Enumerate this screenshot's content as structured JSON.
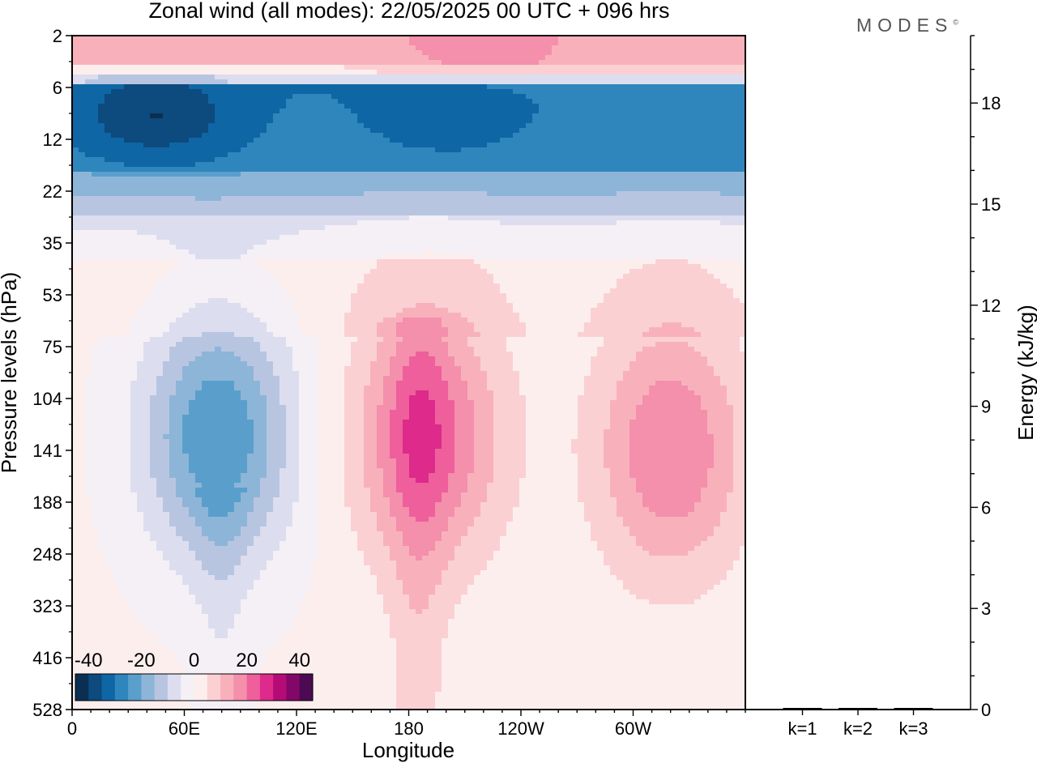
{
  "title": "Zonal wind (all modes):  22/05/2025  00 UTC  + 096 hrs",
  "brand": "MODES",
  "brand_mark": "©",
  "chart_data": [
    {
      "type": "heatmap",
      "title": "Zonal wind (all modes):  22/05/2025  00 UTC  + 096 hrs",
      "xlabel": "Longitude",
      "ylabel": "Pressure levels (hPa)",
      "x_ticks": [
        "0",
        "60E",
        "120E",
        "180",
        "120W",
        "60W"
      ],
      "x_tick_values": [
        0,
        60,
        120,
        180,
        240,
        300
      ],
      "xlim": [
        0,
        360
      ],
      "y_ticks": [
        "2",
        "6",
        "12",
        "22",
        "35",
        "53",
        "75",
        "104",
        "141",
        "188",
        "248",
        "323",
        "416",
        "528"
      ],
      "y_scale": "log (pressure, top 2 hPa to bottom 528 hPa)",
      "colorbar": {
        "labels": [
          "-40",
          "-20",
          "0",
          "20",
          "40"
        ],
        "label_values": [
          -40,
          -20,
          0,
          20,
          40
        ],
        "range": [
          -45,
          45
        ],
        "step": 5,
        "colors": [
          "#0b2f52",
          "#0d4a7e",
          "#0f66a4",
          "#2e86bd",
          "#5a9fcb",
          "#8db5d7",
          "#b8c5e1",
          "#dcdeef",
          "#f5f0f6",
          "#fdeeee",
          "#fbd0d3",
          "#f8b1bb",
          "#f48fac",
          "#ee5f9c",
          "#dd2a8b",
          "#b40b76",
          "#820768",
          "#4b0a52"
        ],
        "placement": "bottom-left inside plot"
      },
      "features": [
        {
          "level_hPa": 9,
          "lon": 45,
          "u": -40
        },
        {
          "level_hPa": 9,
          "lon": 200,
          "u": -33
        },
        {
          "level_hPa": 130,
          "lon": 78,
          "u": -25
        },
        {
          "level_hPa": 130,
          "lon": 190,
          "u": 22
        },
        {
          "level_hPa": 140,
          "lon": 320,
          "u": 20
        },
        {
          "level_hPa": 2,
          "lon": 220,
          "u": 20
        }
      ],
      "grid": false
    },
    {
      "type": "bar",
      "categories": [
        "k=1",
        "k=2",
        "k=3"
      ],
      "values": [
        0.02,
        0.02,
        0.02
      ],
      "ylabel": "Energy (kJ/kg)",
      "y_ticks": [
        "0",
        "3",
        "6",
        "9",
        "12",
        "15",
        "18"
      ],
      "ylim": [
        0,
        20
      ],
      "axis_side": "right"
    }
  ]
}
